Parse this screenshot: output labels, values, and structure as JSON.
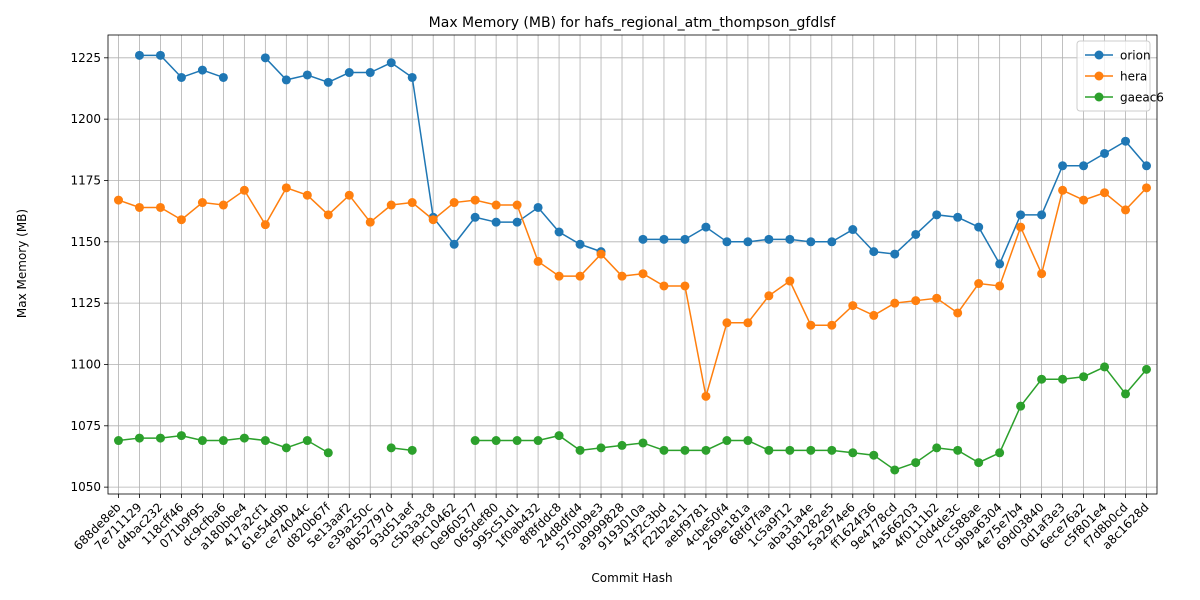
{
  "chart_data": {
    "type": "line",
    "title": "Max Memory (MB) for hafs_regional_atm_thompson_gfdlsf",
    "xlabel": "Commit Hash",
    "ylabel": "Max Memory (MB)",
    "ylim": [
      1047.2,
      1234.3
    ],
    "yticks": [
      1050,
      1075,
      1100,
      1125,
      1150,
      1175,
      1200,
      1225
    ],
    "grid": true,
    "legend_position": "top-right",
    "categories": [
      "688de8eb",
      "7e711129",
      "d4bac232",
      "118cff46",
      "071b9f95",
      "dc9cfba6",
      "a180bbe4",
      "417a2cf1",
      "61e54d9b",
      "ce74044c",
      "d820b67f",
      "5e13aaf2",
      "e39a250c",
      "8b52797d",
      "93d51aef",
      "c5b3a3c8",
      "f9c10462",
      "0e960577",
      "065def80",
      "995c51d1",
      "1f0ab432",
      "8f8fddc8",
      "24d8dfd4",
      "5750b9e3",
      "a9999828",
      "9193010a",
      "43f2c3bd",
      "f22b2e11",
      "aebf9781",
      "4cbe50f4",
      "269e181a",
      "68fd7faa",
      "1c5a9f12",
      "aba31a4e",
      "b81282e5",
      "5a2974e6",
      "ff1624f36",
      "9e4778cd",
      "4a566203",
      "4f0111b2",
      "c0d4de3c",
      "7cc588ae",
      "9b9a6304",
      "4e75e7b4",
      "69d03840",
      "0d1af3e3",
      "6ece76a2",
      "c5f801e4",
      "f7d8b0cd",
      "a8c1628d"
    ],
    "series": [
      {
        "name": "orion",
        "color": "#1f77b4",
        "values": [
          null,
          1226,
          1226,
          1217,
          1220,
          1217,
          null,
          1225,
          1216,
          1218,
          1215,
          1219,
          1219,
          1223,
          1217,
          1160,
          1149,
          1160,
          1158,
          1158,
          1164,
          1154,
          1149,
          1146,
          null,
          1151,
          1151,
          1151,
          1156,
          1150,
          1150,
          1151,
          1151,
          1150,
          1150,
          1155,
          1146,
          1145,
          1153,
          1161,
          1160,
          1156,
          1141,
          1161,
          1161,
          1181,
          1181,
          1186,
          1191,
          1181
        ]
      },
      {
        "name": "hera",
        "color": "#ff7f0e",
        "values": [
          1167,
          1164,
          1164,
          1159,
          1166,
          1165,
          1171,
          1157,
          1172,
          1169,
          1161,
          1169,
          1158,
          1165,
          1166,
          1159,
          1166,
          1167,
          1165,
          1165,
          1142,
          1136,
          1136,
          1145,
          1136,
          1137,
          1132,
          1132,
          1087,
          1117,
          1117,
          1128,
          1134,
          1116,
          1116,
          1124,
          1120,
          1125,
          1126,
          1127,
          1121,
          1133,
          1132,
          1156,
          1137,
          1171,
          1167,
          1170,
          1163,
          1172
        ]
      },
      {
        "name": "gaeac6",
        "color": "#2ca02c",
        "values": [
          1069,
          1070,
          1070,
          1071,
          1069,
          1069,
          1070,
          1069,
          1066,
          1069,
          1064,
          null,
          null,
          1066,
          1065,
          null,
          null,
          1069,
          1069,
          1069,
          1069,
          1071,
          1065,
          1066,
          1067,
          1068,
          1065,
          1065,
          1065,
          1069,
          1069,
          1065,
          1065,
          1065,
          1065,
          1064,
          1063,
          1057,
          1060,
          1066,
          1065,
          1060,
          1064,
          1083,
          1094,
          1094,
          1095,
          1099,
          1088,
          1098
        ]
      }
    ]
  }
}
